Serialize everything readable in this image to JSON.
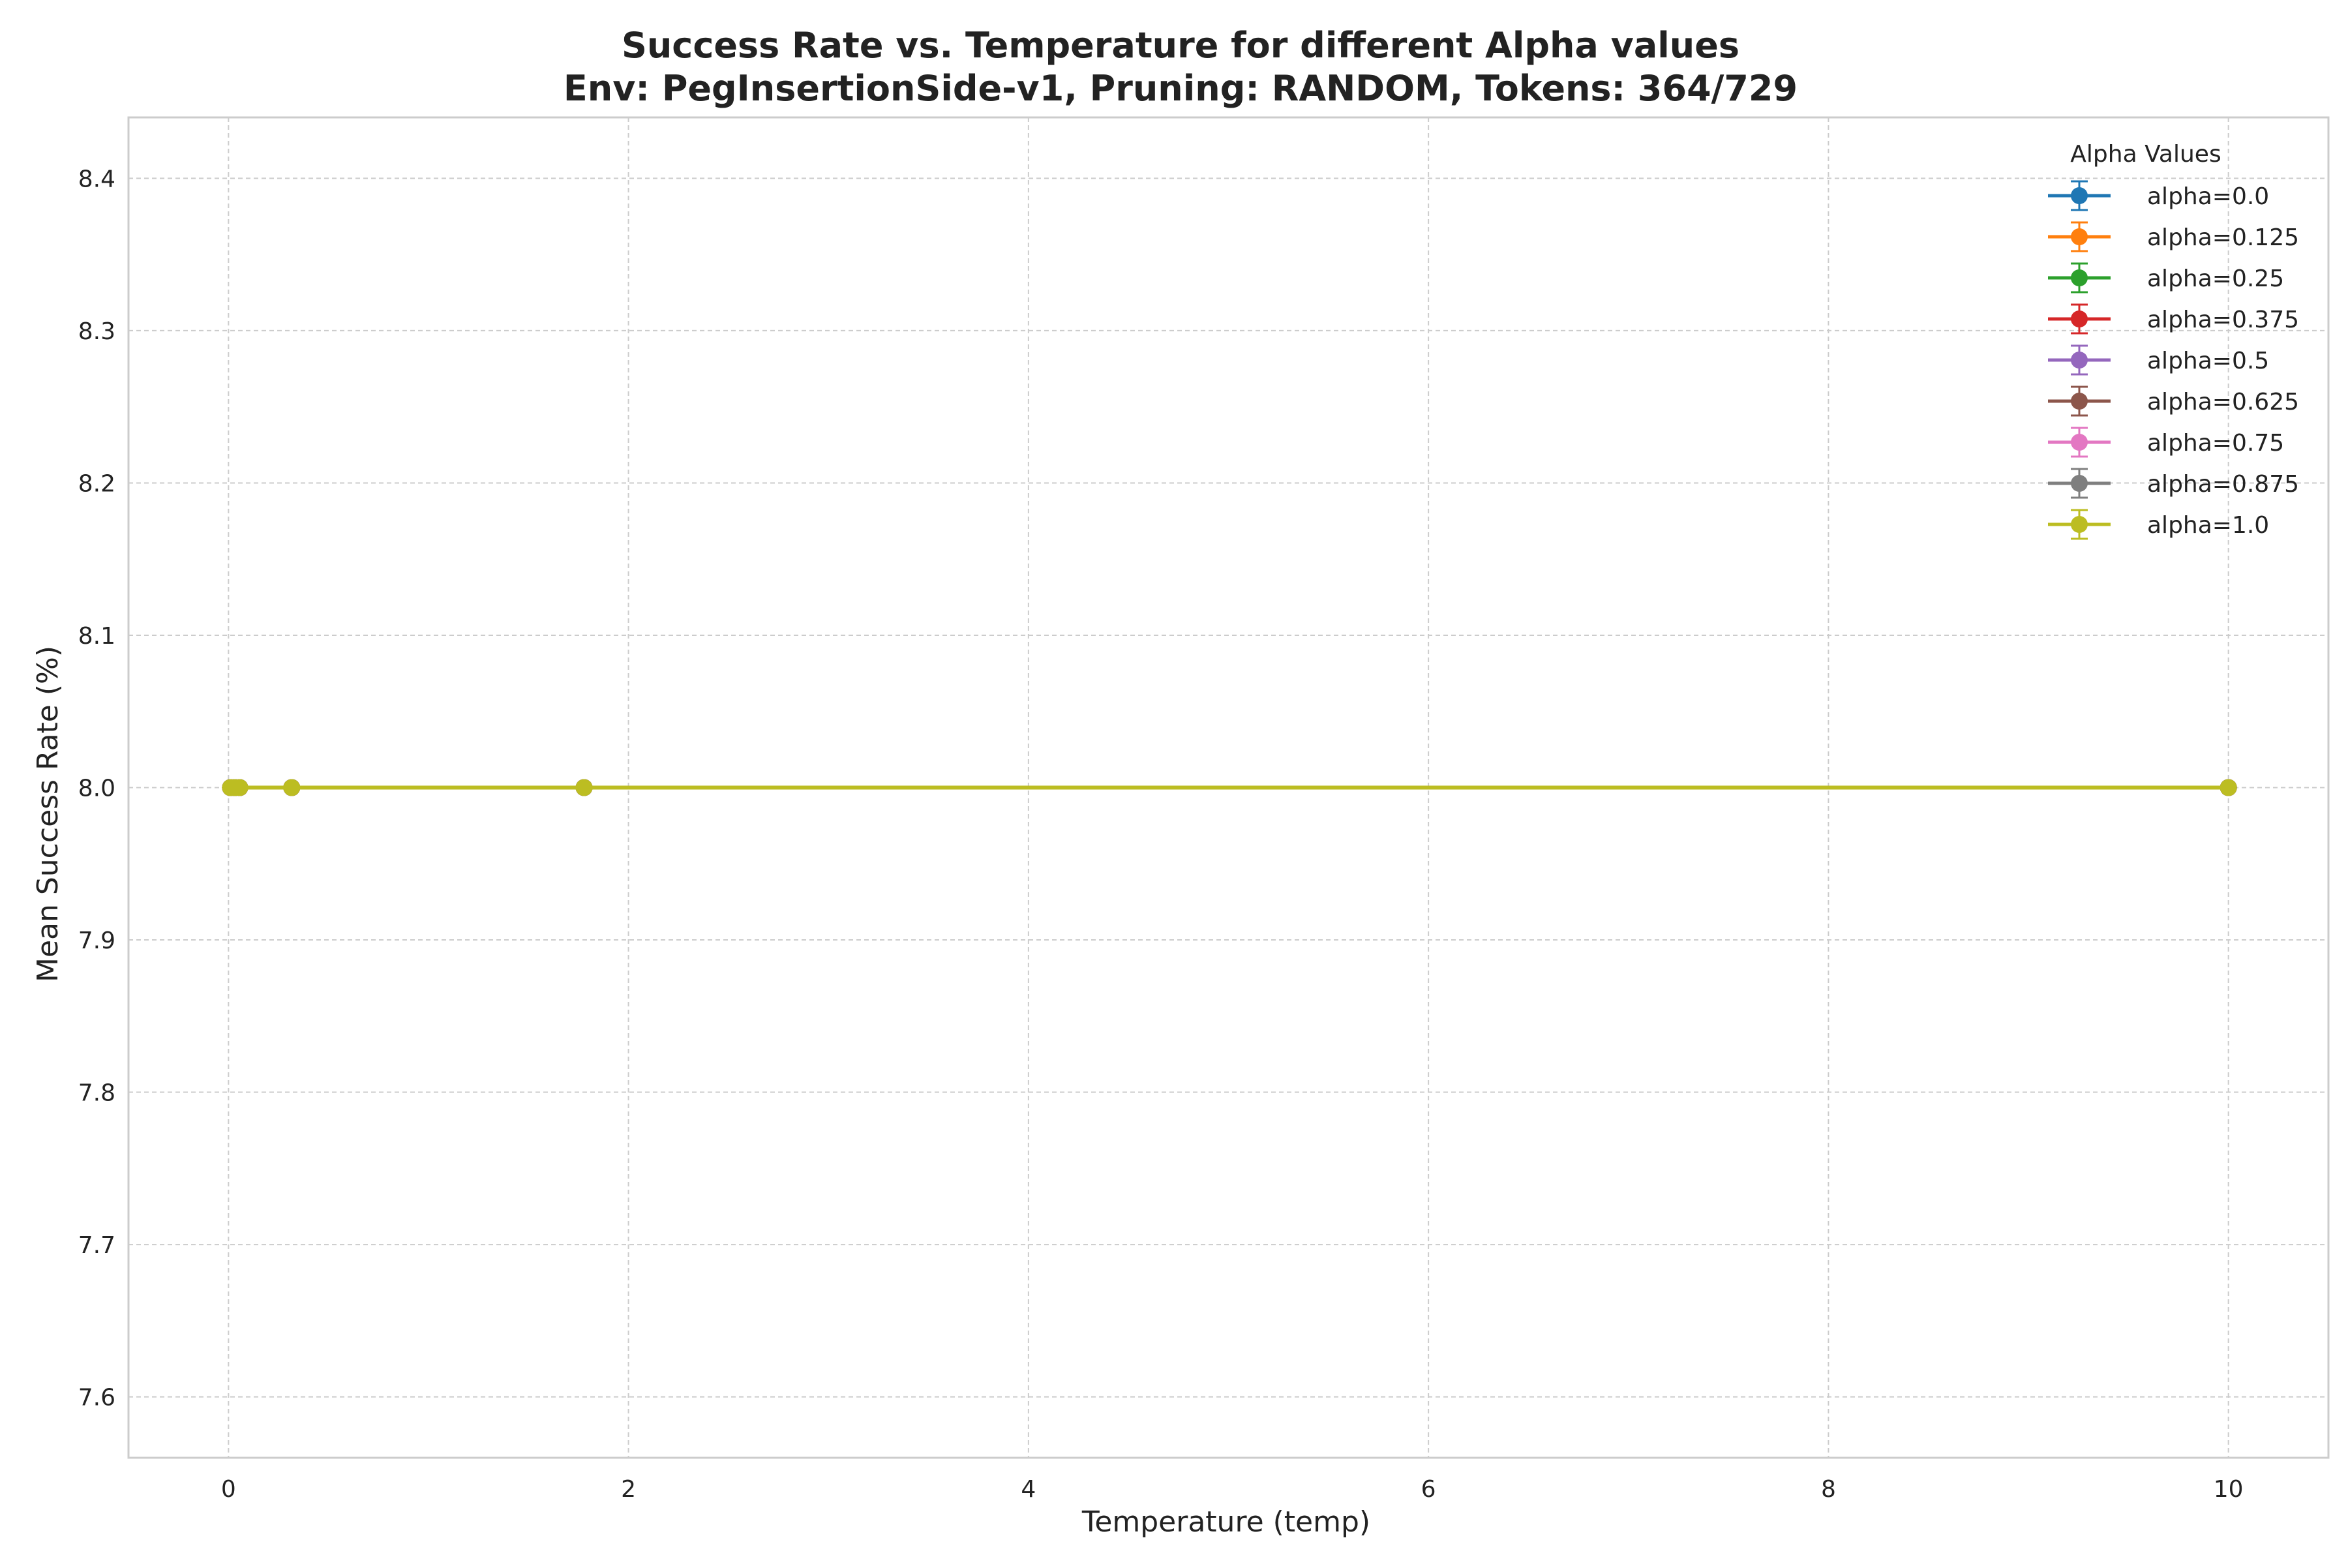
{
  "chart_data": {
    "type": "line",
    "title": "Success Rate vs. Temperature for different Alpha values",
    "subtitle": "Env: PegInsertionSide-v1, Pruning: RANDOM, Tokens: 364/729",
    "xlabel": "Temperature (temp)",
    "ylabel": "Mean Success Rate (%)",
    "xlim": [
      -0.5,
      10.5
    ],
    "ylim": [
      7.56,
      8.44
    ],
    "xticks": [
      0,
      2,
      4,
      6,
      8,
      10
    ],
    "xtick_labels": [
      "0",
      "2",
      "4",
      "6",
      "8",
      "10"
    ],
    "yticks": [
      7.6,
      7.7,
      7.8,
      7.9,
      8.0,
      8.1,
      8.2,
      8.3,
      8.4
    ],
    "ytick_labels": [
      "7.6",
      "7.7",
      "7.8",
      "7.9",
      "8.0",
      "8.1",
      "8.2",
      "8.3",
      "8.4"
    ],
    "grid": true,
    "legend": {
      "title": "Alpha Values",
      "position": "top-right"
    },
    "x": [
      0.01,
      0.03162,
      0.05623,
      0.3162,
      1.778,
      10
    ],
    "series": [
      {
        "name": "alpha=0.0",
        "color": "#1f77b4",
        "values": [
          8.0,
          8.0,
          8.0,
          8.0,
          8.0,
          8.0
        ]
      },
      {
        "name": "alpha=0.125",
        "color": "#ff7f0e",
        "values": [
          8.0,
          8.0,
          8.0,
          8.0,
          8.0,
          8.0
        ]
      },
      {
        "name": "alpha=0.25",
        "color": "#2ca02c",
        "values": [
          8.0,
          8.0,
          8.0,
          8.0,
          8.0,
          8.0
        ]
      },
      {
        "name": "alpha=0.375",
        "color": "#d62728",
        "values": [
          8.0,
          8.0,
          8.0,
          8.0,
          8.0,
          8.0
        ]
      },
      {
        "name": "alpha=0.5",
        "color": "#9467bd",
        "values": [
          8.0,
          8.0,
          8.0,
          8.0,
          8.0,
          8.0
        ]
      },
      {
        "name": "alpha=0.625",
        "color": "#8c564b",
        "values": [
          8.0,
          8.0,
          8.0,
          8.0,
          8.0,
          8.0
        ]
      },
      {
        "name": "alpha=0.75",
        "color": "#e377c2",
        "values": [
          8.0,
          8.0,
          8.0,
          8.0,
          8.0,
          8.0
        ]
      },
      {
        "name": "alpha=0.875",
        "color": "#7f7f7f",
        "values": [
          8.0,
          8.0,
          8.0,
          8.0,
          8.0,
          8.0
        ]
      },
      {
        "name": "alpha=1.0",
        "color": "#bcbd22",
        "values": [
          8.0,
          8.0,
          8.0,
          8.0,
          8.0,
          8.0
        ]
      }
    ]
  }
}
